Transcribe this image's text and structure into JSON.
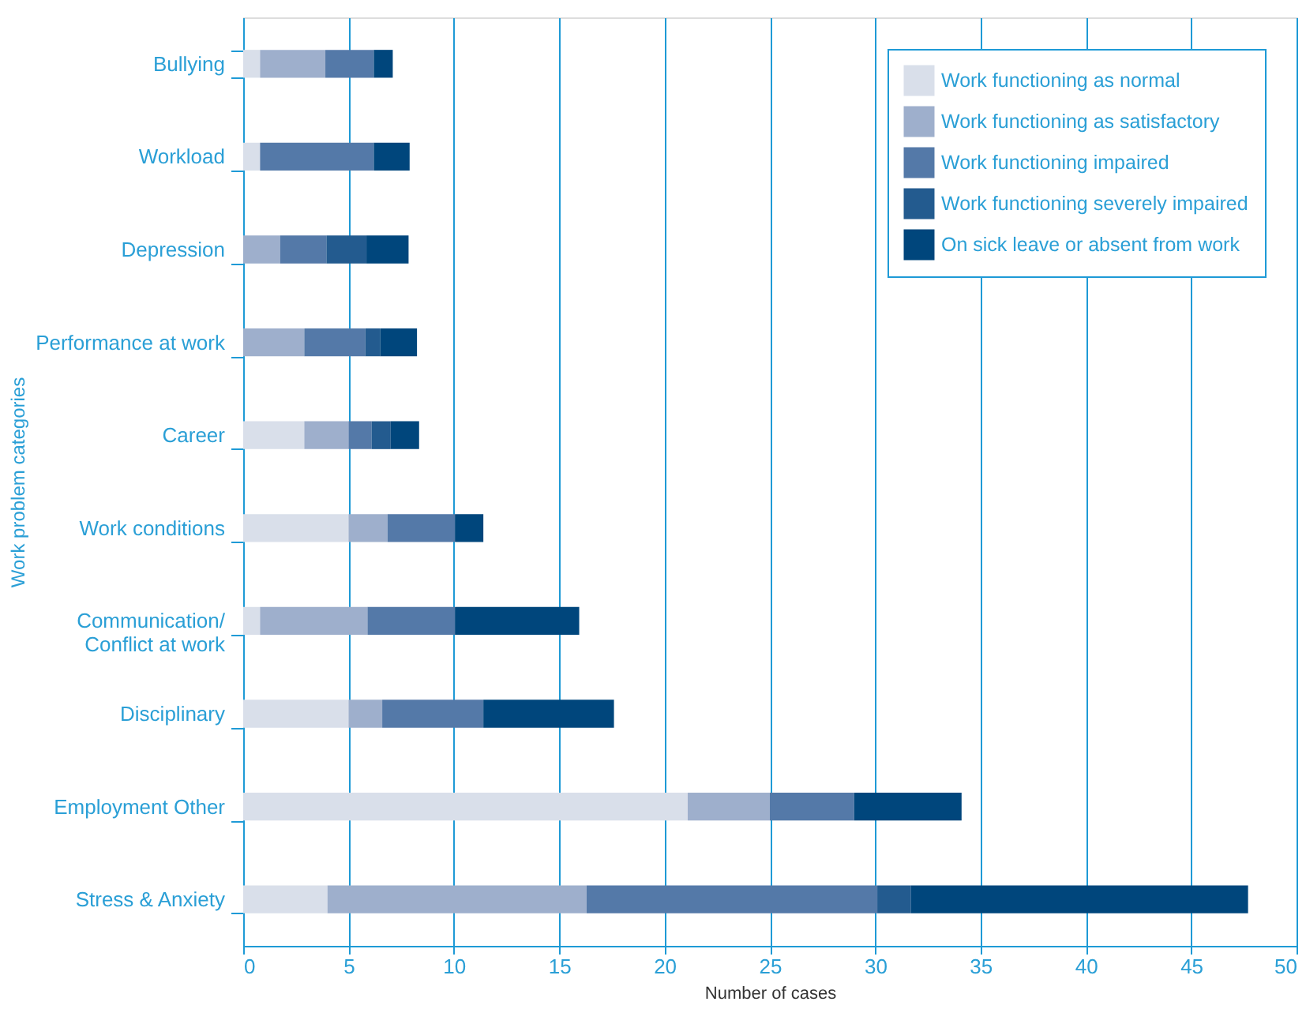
{
  "chart_data": {
    "type": "bar",
    "orientation": "horizontal",
    "stacked": true,
    "xlabel": "Number of cases",
    "ylabel": "Work problem categories",
    "categories": [
      "Bullying",
      "Workload",
      "Depression",
      "Performance at work",
      "Career",
      "Work conditions",
      "Communication/\nConflict at work",
      "Disciplinary",
      "Employment Other",
      "Stress & Anxiety"
    ],
    "series": [
      {
        "name": "Work functioning as normal",
        "color": "#d9dfea",
        "values": [
          0.8,
          0.8,
          0,
          0,
          2.9,
          5.0,
          0.8,
          5.0,
          21.1,
          4.0
        ]
      },
      {
        "name": "Work functioning as satisfactory",
        "color": "#9eafcc",
        "values": [
          3.1,
          0,
          1.75,
          2.9,
          2.1,
          1.85,
          5.1,
          1.6,
          3.9,
          12.3
        ]
      },
      {
        "name": "Work functioning impaired",
        "color": "#5479a8",
        "values": [
          2.3,
          5.4,
          2.2,
          2.9,
          1.1,
          3.2,
          4.15,
          4.8,
          4.0,
          13.8
        ]
      },
      {
        "name": "Work functioning severely impaired",
        "color": "#235b8f",
        "values": [
          0,
          0,
          1.9,
          0.7,
          0.9,
          0,
          0,
          0,
          0,
          1.6
        ]
      },
      {
        "name": "On sick leave or absent from work",
        "color": "#00467c",
        "values": [
          0.9,
          1.7,
          2.0,
          1.75,
          1.35,
          1.35,
          5.9,
          6.2,
          5.1,
          16.0
        ]
      }
    ],
    "xlim": [
      0,
      50
    ],
    "xticks": [
      0,
      5,
      10,
      15,
      20,
      25,
      30,
      35,
      40,
      45,
      50
    ],
    "grid": "x",
    "legend": "top right"
  }
}
